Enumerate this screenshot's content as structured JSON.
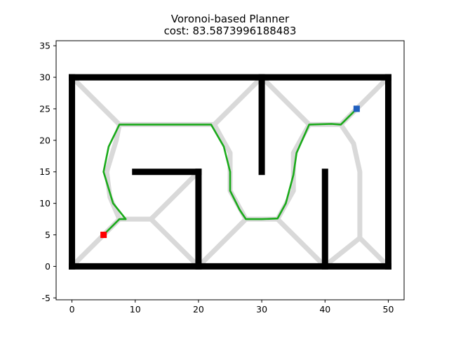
{
  "chart_data": {
    "type": "scatter",
    "title": "Voronoi-based Planner",
    "subtitle": "cost: 83.5873996188483",
    "xlabel": "",
    "ylabel": "",
    "xlim": [
      -2.5,
      52.5
    ],
    "ylim": [
      -5.3,
      35.8
    ],
    "x_ticks": [
      0,
      10,
      20,
      30,
      40,
      50
    ],
    "y_ticks": [
      -5,
      0,
      5,
      10,
      15,
      20,
      25,
      30,
      35
    ],
    "grid": false,
    "colors": {
      "obstacle": "#000000",
      "voronoi": "#d9d9d9",
      "path": "#1aaa1a",
      "start": "#ff0000",
      "goal": "#1f5fbf"
    },
    "obstacles": [
      {
        "type": "segment",
        "from": [
          0,
          0
        ],
        "to": [
          50,
          0
        ]
      },
      {
        "type": "segment",
        "from": [
          0,
          30
        ],
        "to": [
          50,
          30
        ]
      },
      {
        "type": "segment",
        "from": [
          0,
          0
        ],
        "to": [
          0,
          30
        ]
      },
      {
        "type": "segment",
        "from": [
          50,
          0
        ],
        "to": [
          50,
          30
        ]
      },
      {
        "type": "segment",
        "from": [
          10,
          15
        ],
        "to": [
          20,
          15
        ]
      },
      {
        "type": "segment",
        "from": [
          20,
          0
        ],
        "to": [
          20,
          15
        ]
      },
      {
        "type": "segment",
        "from": [
          30,
          15
        ],
        "to": [
          30,
          30
        ]
      },
      {
        "type": "segment",
        "from": [
          40,
          0
        ],
        "to": [
          40,
          15
        ]
      }
    ],
    "voronoi_edges": [
      [
        [
          0.5,
          29.5
        ],
        [
          7.5,
          22.5
        ]
      ],
      [
        [
          0.5,
          0.5
        ],
        [
          7.5,
          7.5
        ]
      ],
      [
        [
          7.5,
          7.5
        ],
        [
          12.5,
          7.5
        ]
      ],
      [
        [
          12.5,
          7.5
        ],
        [
          19.5,
          14.5
        ]
      ],
      [
        [
          12.5,
          7.5
        ],
        [
          19.5,
          0.5
        ]
      ],
      [
        [
          7.5,
          22.5
        ],
        [
          7,
          20
        ],
        [
          5.5,
          15
        ],
        [
          6,
          11
        ],
        [
          7.5,
          7.5
        ]
      ],
      [
        [
          7.5,
          22.5
        ],
        [
          22.5,
          22.5
        ]
      ],
      [
        [
          22.5,
          22.5
        ],
        [
          29.5,
          29.5
        ]
      ],
      [
        [
          22.5,
          22.5
        ],
        [
          25,
          18
        ],
        [
          25,
          12
        ],
        [
          27.5,
          7.5
        ]
      ],
      [
        [
          20.5,
          0.5
        ],
        [
          27.5,
          7.5
        ]
      ],
      [
        [
          27.5,
          7.5
        ],
        [
          32.5,
          7.5
        ]
      ],
      [
        [
          32.5,
          7.5
        ],
        [
          39.5,
          0.5
        ]
      ],
      [
        [
          32.5,
          7.5
        ],
        [
          35,
          12
        ],
        [
          35,
          18
        ],
        [
          37.5,
          22.5
        ]
      ],
      [
        [
          30.5,
          29.5
        ],
        [
          37.5,
          22.5
        ]
      ],
      [
        [
          37.5,
          22.5
        ],
        [
          42.5,
          22.5
        ]
      ],
      [
        [
          42.5,
          22.5
        ],
        [
          49.5,
          29.5
        ]
      ],
      [
        [
          42.5,
          22.5
        ],
        [
          44.5,
          19.5
        ],
        [
          45.5,
          15
        ],
        [
          45.5,
          4.5
        ]
      ],
      [
        [
          40.5,
          0.5
        ],
        [
          45.5,
          4.5
        ]
      ],
      [
        [
          45.5,
          4.5
        ],
        [
          49.5,
          0.5
        ]
      ]
    ],
    "path": [
      [
        5,
        5
      ],
      [
        7.5,
        7.5
      ],
      [
        8.5,
        7.5
      ],
      [
        6.5,
        10
      ],
      [
        5,
        15
      ],
      [
        5.8,
        19
      ],
      [
        7.5,
        22.5
      ],
      [
        22,
        22.5
      ],
      [
        24,
        19
      ],
      [
        25,
        15
      ],
      [
        25,
        12
      ],
      [
        26.5,
        9
      ],
      [
        27.5,
        7.5
      ],
      [
        30,
        7.5
      ],
      [
        32.5,
        7.6
      ],
      [
        33.8,
        10
      ],
      [
        35,
        14.5
      ],
      [
        35.5,
        18
      ],
      [
        37.5,
        22.5
      ],
      [
        41,
        22.6
      ],
      [
        42.5,
        22.5
      ],
      [
        45,
        25
      ]
    ],
    "start": [
      5,
      5
    ],
    "goal": [
      45,
      25
    ]
  }
}
